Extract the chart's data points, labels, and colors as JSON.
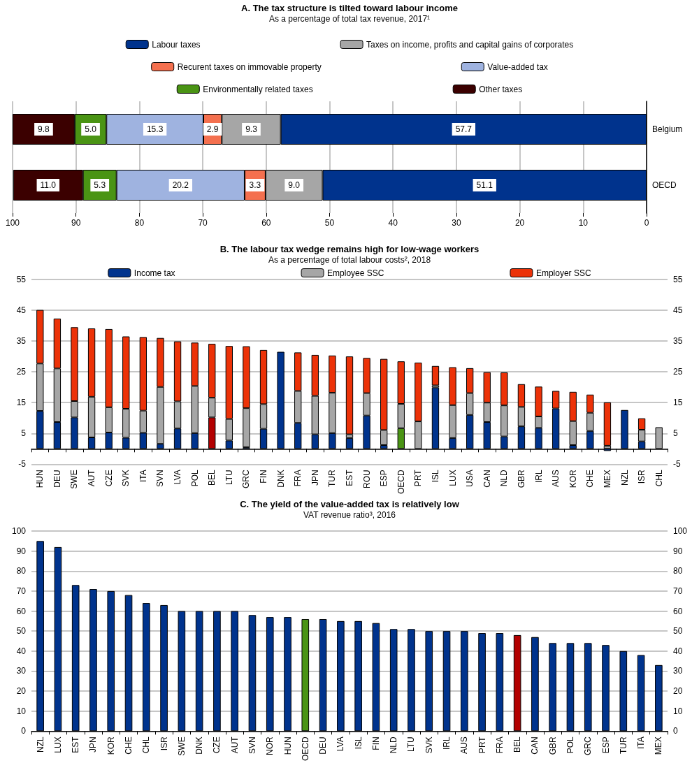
{
  "chart_data": [
    {
      "type": "bar",
      "title": "A. The tax structure is tilted toward labour income",
      "subtitle": "As a percentage of total tax revenue, 2017¹",
      "orientation": "horizontal",
      "stacked": true,
      "categories": [
        "Belgium",
        "OECD"
      ],
      "xlim": [
        100,
        0
      ],
      "xticks": [
        0,
        10,
        20,
        30,
        40,
        50,
        60,
        70,
        80,
        90,
        100
      ],
      "grid": "x",
      "legend": "top",
      "series": [
        {
          "name": "Labour taxes",
          "color": "#00338d",
          "values": [
            57.7,
            51.1
          ],
          "value_labels": [
            "57.7",
            "51.1"
          ]
        },
        {
          "name": "Taxes on income, profits and capital gains of corporates",
          "color": "#a6a6a6",
          "values": [
            9.3,
            9.0
          ],
          "value_labels": [
            "9.3",
            "9.0"
          ]
        },
        {
          "name": "Recurent taxes on immovable property",
          "color": "#f4704f",
          "values": [
            2.9,
            3.3
          ],
          "value_labels": [
            "2.9",
            "3.3"
          ]
        },
        {
          "name": "Value-added tax",
          "color": "#9fb3e0",
          "values": [
            15.3,
            20.2
          ],
          "value_labels": [
            "15.3",
            "20.2"
          ]
        },
        {
          "name": "Environmentally related taxes",
          "color": "#4a9414",
          "values": [
            5.0,
            5.3
          ],
          "value_labels": [
            "5.0",
            "5.3"
          ]
        },
        {
          "name": "Other taxes",
          "color": "#3b0000",
          "values": [
            9.8,
            11.0
          ],
          "value_labels": [
            "9.8",
            "11.0"
          ]
        }
      ]
    },
    {
      "type": "bar",
      "title": "B. The labour tax wedge remains high for low-wage workers",
      "subtitle": "As a percentage of total labour costs², 2018",
      "stacked": true,
      "categories": [
        "HUN",
        "DEU",
        "SWE",
        "AUT",
        "CZE",
        "SVK",
        "ITA",
        "SVN",
        "LVA",
        "POL",
        "BEL",
        "LTU",
        "GRC",
        "FIN",
        "DNK",
        "FRA",
        "JPN",
        "TUR",
        "EST",
        "ROU",
        "ESP",
        "OECD",
        "PRT",
        "ISL",
        "LUX",
        "USA",
        "CAN",
        "NLD",
        "GBR",
        "IRL",
        "AUS",
        "KOR",
        "CHE",
        "MEX",
        "NZL",
        "ISR",
        "CHL"
      ],
      "ylim": [
        -5,
        55
      ],
      "yticks": [
        -5,
        5,
        15,
        25,
        35,
        45,
        55
      ],
      "y2lim": [
        -5,
        55
      ],
      "y2ticks": [
        -5,
        5,
        15,
        25,
        35,
        45,
        55
      ],
      "grid": "y",
      "legend": "top",
      "series": [
        {
          "name": "Income tax",
          "color": "#00338d",
          "colors": [
            "#00338d",
            "#00338d",
            "#00338d",
            "#00338d",
            "#00338d",
            "#00338d",
            "#00338d",
            "#00338d",
            "#00338d",
            "#00338d",
            "#b30000",
            "#00338d",
            "#00338d",
            "#00338d",
            "#00338d",
            "#00338d",
            "#00338d",
            "#00338d",
            "#00338d",
            "#00338d",
            "#00338d",
            "#4a9414",
            "#00338d",
            "#00338d",
            "#00338d",
            "#00338d",
            "#00338d",
            "#00338d",
            "#00338d",
            "#00338d",
            "#00338d",
            "#00338d",
            "#00338d",
            "#00338d",
            "#00338d",
            "#00338d",
            "#00338d"
          ],
          "values": [
            12.3,
            8.7,
            10.2,
            3.7,
            5.3,
            3.6,
            5.2,
            1.6,
            6.6,
            5.1,
            10.2,
            2.7,
            0.5,
            6.5,
            31.5,
            8.4,
            4.7,
            5.1,
            3.5,
            10.8,
            1.2,
            6.7,
            null,
            19.9,
            3.5,
            11.0,
            8.7,
            4.0,
            7.3,
            6.8,
            13.1,
            1.2,
            5.8,
            -0.7,
            12.6,
            2.4,
            null
          ]
        },
        {
          "name": "Employee SSC",
          "color": "#a6a6a6",
          "values": [
            15.4,
            17.4,
            5.3,
            13.2,
            8.2,
            9.4,
            7.2,
            18.5,
            8.8,
            15.3,
            6.4,
            7.0,
            12.7,
            8.0,
            null,
            10.4,
            12.5,
            13.1,
            1.2,
            7.3,
            4.9,
            7.9,
            8.9,
            0.7,
            10.7,
            7.1,
            6.3,
            10.1,
            6.3,
            3.7,
            null,
            7.8,
            5.9,
            1.0,
            null,
            3.8,
            7.0
          ]
        },
        {
          "name": "Employer SSC",
          "color": "#ec3208",
          "values": [
            17.4,
            16.2,
            24.0,
            22.2,
            25.4,
            23.5,
            23.9,
            15.9,
            19.5,
            14.1,
            17.5,
            23.7,
            20.1,
            17.6,
            null,
            12.5,
            13.3,
            12.1,
            25.3,
            11.4,
            23.1,
            13.8,
            19.1,
            6.3,
            12.3,
            8.1,
            9.9,
            10.7,
            7.4,
            9.7,
            5.7,
            9.5,
            5.9,
            14.1,
            null,
            3.7,
            null
          ]
        }
      ]
    },
    {
      "type": "bar",
      "title": "C. The yield of the value-added tax is relatively low",
      "subtitle": "VAT revenue ratio³, 2016",
      "categories": [
        "NZL",
        "LUX",
        "EST",
        "JPN",
        "KOR",
        "CHE",
        "CHL",
        "ISR",
        "SWE",
        "DNK",
        "CZE",
        "AUT",
        "SVN",
        "NOR",
        "HUN",
        "OECD",
        "DEU",
        "LVA",
        "ISL",
        "FIN",
        "NLD",
        "LTU",
        "SVK",
        "IRL",
        "AUS",
        "PRT",
        "FRA",
        "BEL",
        "CAN",
        "GBR",
        "POL",
        "GRC",
        "ESP",
        "TUR",
        "ITA",
        "MEX"
      ],
      "ylim": [
        0,
        100
      ],
      "yticks": [
        0,
        10,
        20,
        30,
        40,
        50,
        60,
        70,
        80,
        90,
        100
      ],
      "y2lim": [
        0,
        100
      ],
      "y2ticks": [
        0,
        10,
        20,
        30,
        40,
        50,
        60,
        70,
        80,
        90,
        100
      ],
      "grid": "y",
      "series": [
        {
          "color": "#00338d",
          "colors": [
            "#00338d",
            "#00338d",
            "#00338d",
            "#00338d",
            "#00338d",
            "#00338d",
            "#00338d",
            "#00338d",
            "#00338d",
            "#00338d",
            "#00338d",
            "#00338d",
            "#00338d",
            "#00338d",
            "#00338d",
            "#4a9414",
            "#00338d",
            "#00338d",
            "#00338d",
            "#00338d",
            "#00338d",
            "#00338d",
            "#00338d",
            "#00338d",
            "#00338d",
            "#00338d",
            "#00338d",
            "#b30000",
            "#00338d",
            "#00338d",
            "#00338d",
            "#00338d",
            "#00338d",
            "#00338d",
            "#00338d",
            "#00338d"
          ],
          "values": [
            95,
            92,
            73,
            71,
            70,
            68,
            64,
            63,
            60,
            60,
            60,
            60,
            58,
            57,
            57,
            56,
            56,
            55,
            55,
            54,
            51,
            51,
            50,
            50,
            50,
            49,
            49,
            48,
            47,
            44,
            44,
            44,
            43,
            40,
            38,
            33
          ]
        }
      ]
    }
  ]
}
